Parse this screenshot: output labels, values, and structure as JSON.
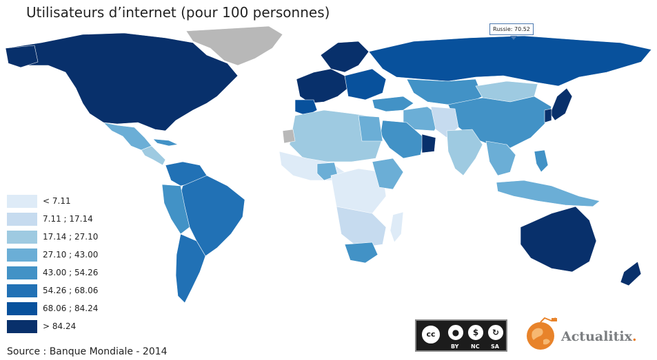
{
  "title": "Utilisateurs d’internet (pour 100 personnes)",
  "source": "Source : Banque Mondiale - 2014",
  "tooltip": {
    "text": "Russie: 70.52",
    "country": "Russie",
    "value": 70.52
  },
  "legend": [
    {
      "label": "< 7.11",
      "color": "#deebf7"
    },
    {
      "label": "7.11 ; 17.14",
      "color": "#c6dbef"
    },
    {
      "label": "17.14 ; 27.10",
      "color": "#9ecae1"
    },
    {
      "label": "27.10 ; 43.00",
      "color": "#6baed6"
    },
    {
      "label": "43.00 ; 54.26",
      "color": "#4292c6"
    },
    {
      "label": "54.26 ; 68.06",
      "color": "#2171b5"
    },
    {
      "label": "68.06 ; 84.24",
      "color": "#08519c"
    },
    {
      "label": "> 84.24",
      "color": "#08306b"
    }
  ],
  "no_data_color": "#b8b8b8",
  "license": {
    "cc": "cc",
    "by": "BY",
    "nc": "NC",
    "sa": "SA"
  },
  "brand": {
    "name": "Actualitix",
    "dot": "."
  }
}
